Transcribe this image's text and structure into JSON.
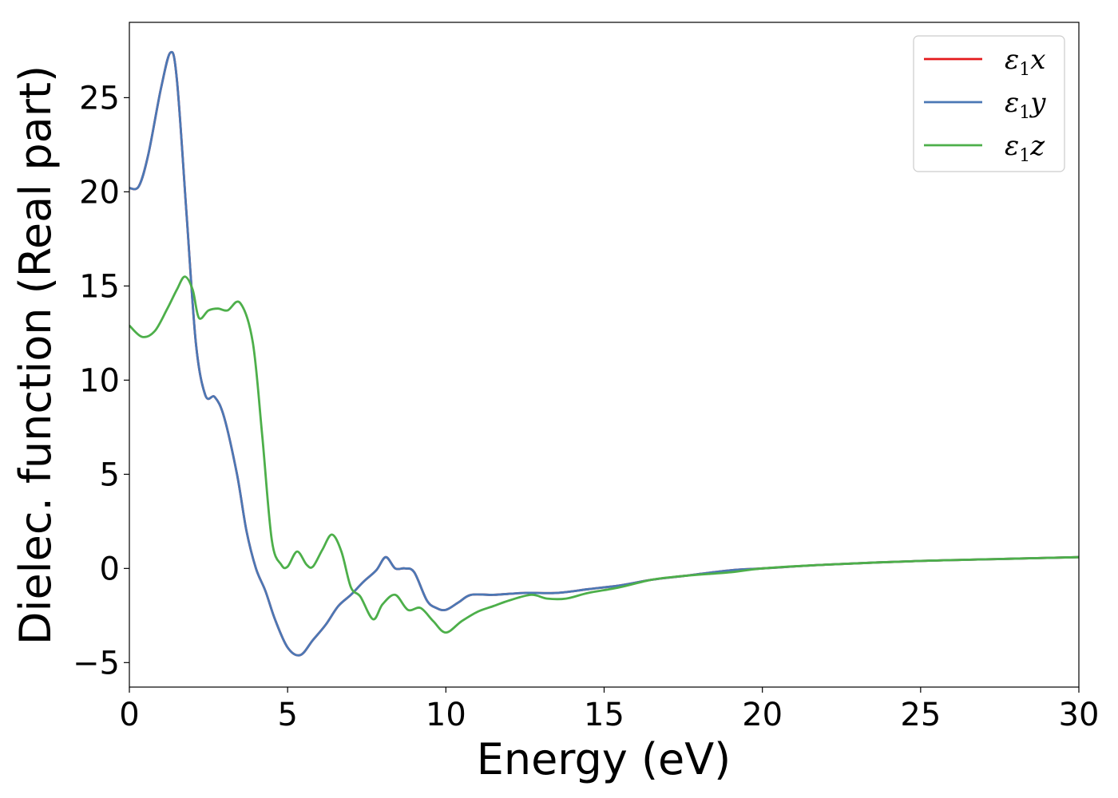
{
  "chart_data": {
    "type": "line",
    "xlabel": "Energy (eV)",
    "ylabel": "Dielec. function (Real part)",
    "xlim": [
      0,
      30
    ],
    "ylim": [
      -6.3,
      29
    ],
    "xticks": [
      0,
      5,
      10,
      15,
      20,
      25,
      30
    ],
    "yticks": [
      -5,
      0,
      5,
      10,
      15,
      20,
      25
    ],
    "xtick_labels": [
      "0",
      "5",
      "10",
      "15",
      "20",
      "25",
      "30"
    ],
    "ytick_labels": [
      "−5",
      "0",
      "5",
      "10",
      "15",
      "20",
      "25"
    ],
    "grid": false,
    "legend_position": "top-right",
    "series": [
      {
        "name": "ε",
        "subscript": "1",
        "suffix": "x",
        "color": "#e41a1c",
        "x": [
          0,
          0.3,
          0.6,
          1.0,
          1.3,
          1.5,
          1.8,
          2.1,
          2.4,
          2.7,
          3.0,
          3.4,
          3.7,
          4.0,
          4.3,
          4.6,
          5.0,
          5.4,
          5.8,
          6.2,
          6.6,
          7.0,
          7.4,
          7.8,
          8.1,
          8.4,
          8.7,
          9.0,
          9.4,
          9.7,
          10.0,
          10.4,
          10.8,
          11.5,
          12.5,
          13.5,
          14.5,
          15.5,
          16.5,
          17.5,
          19.0,
          20.0,
          22.0,
          25.0,
          27.5,
          30.0
        ],
        "y": [
          20.2,
          20.3,
          22.0,
          25.5,
          27.4,
          26.0,
          19.0,
          12.0,
          9.2,
          9.1,
          8.0,
          5.0,
          2.0,
          0.0,
          -1.2,
          -2.7,
          -4.2,
          -4.6,
          -3.8,
          -3.0,
          -2.0,
          -1.4,
          -0.7,
          -0.1,
          0.6,
          0.0,
          0.0,
          -0.2,
          -1.7,
          -2.1,
          -2.2,
          -1.8,
          -1.4,
          -1.4,
          -1.3,
          -1.3,
          -1.1,
          -0.9,
          -0.6,
          -0.4,
          -0.1,
          0.0,
          0.2,
          0.4,
          0.5,
          0.6
        ]
      },
      {
        "name": "ε",
        "subscript": "1",
        "suffix": "y",
        "color": "#4b78b5",
        "x": [
          0,
          0.3,
          0.6,
          1.0,
          1.3,
          1.5,
          1.8,
          2.1,
          2.4,
          2.7,
          3.0,
          3.4,
          3.7,
          4.0,
          4.3,
          4.6,
          5.0,
          5.4,
          5.8,
          6.2,
          6.6,
          7.0,
          7.4,
          7.8,
          8.1,
          8.4,
          8.7,
          9.0,
          9.4,
          9.7,
          10.0,
          10.4,
          10.8,
          11.5,
          12.5,
          13.5,
          14.5,
          15.5,
          16.5,
          17.5,
          19.0,
          20.0,
          22.0,
          25.0,
          27.5,
          30.0
        ],
        "y": [
          20.2,
          20.3,
          22.0,
          25.5,
          27.4,
          26.0,
          19.0,
          12.0,
          9.2,
          9.1,
          8.0,
          5.0,
          2.0,
          0.0,
          -1.2,
          -2.7,
          -4.2,
          -4.6,
          -3.8,
          -3.0,
          -2.0,
          -1.4,
          -0.7,
          -0.1,
          0.6,
          0.0,
          0.0,
          -0.2,
          -1.7,
          -2.1,
          -2.2,
          -1.8,
          -1.4,
          -1.4,
          -1.3,
          -1.3,
          -1.1,
          -0.9,
          -0.6,
          -0.4,
          -0.1,
          0.0,
          0.2,
          0.4,
          0.5,
          0.6
        ]
      },
      {
        "name": "ε",
        "subscript": "1",
        "suffix": "z",
        "color": "#4daf4a",
        "x": [
          0,
          0.4,
          0.8,
          1.2,
          1.5,
          1.75,
          2.0,
          2.2,
          2.5,
          2.8,
          3.1,
          3.5,
          3.9,
          4.2,
          4.5,
          4.8,
          5.0,
          5.3,
          5.6,
          5.8,
          6.1,
          6.4,
          6.7,
          7.0,
          7.3,
          7.7,
          8.0,
          8.4,
          8.8,
          9.2,
          9.6,
          10.0,
          10.5,
          11.0,
          11.5,
          12.0,
          12.7,
          13.2,
          13.8,
          14.5,
          15.5,
          16.5,
          17.5,
          19.0,
          20.0,
          22.0,
          25.0,
          27.5,
          30.0
        ],
        "y": [
          12.9,
          12.3,
          12.6,
          13.8,
          14.8,
          15.5,
          14.8,
          13.3,
          13.7,
          13.8,
          13.7,
          14.1,
          12.0,
          7.0,
          1.5,
          0.2,
          0.1,
          0.9,
          0.2,
          0.1,
          1.0,
          1.8,
          0.9,
          -1.0,
          -1.5,
          -2.7,
          -1.9,
          -1.4,
          -2.2,
          -2.1,
          -2.8,
          -3.4,
          -2.8,
          -2.3,
          -2.0,
          -1.7,
          -1.4,
          -1.6,
          -1.6,
          -1.3,
          -1.0,
          -0.6,
          -0.4,
          -0.2,
          0.0,
          0.2,
          0.4,
          0.5,
          0.6
        ]
      }
    ]
  }
}
